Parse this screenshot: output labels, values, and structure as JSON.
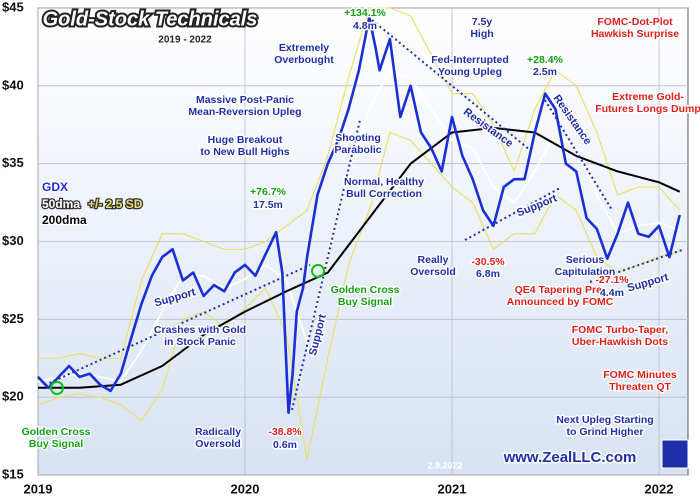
{
  "chart_data": {
    "type": "line",
    "title": "Gold-Stock Technicals",
    "subtitle": "2019 - 2022",
    "date_note": "2.9.2022",
    "website": "www.ZealLLC.com",
    "xlim": [
      2019,
      2022.14
    ],
    "xticks": [
      2019,
      2020,
      2021,
      2022
    ],
    "ylim": [
      15,
      45
    ],
    "yticks": [
      {
        "value": 15,
        "label": "$15"
      },
      {
        "value": 20,
        "label": "$20"
      },
      {
        "value": 25,
        "label": "$25"
      },
      {
        "value": 30,
        "label": "$30"
      },
      {
        "value": 35,
        "label": "$35"
      },
      {
        "value": 40,
        "label": "$40"
      },
      {
        "value": 45,
        "label": "$45"
      }
    ],
    "grid": true,
    "series": [
      {
        "name": "+/- 2.5 SD",
        "color": "#e8e070",
        "x": [
          2019.0,
          2019.1,
          2019.2,
          2019.3,
          2019.4,
          2019.5,
          2019.6,
          2019.7,
          2019.8,
          2019.9,
          2020.0,
          2020.1,
          2020.2,
          2020.3,
          2020.4,
          2020.5,
          2020.6,
          2020.7,
          2020.8,
          2020.9,
          2021.0,
          2021.1,
          2021.2,
          2021.3,
          2021.4,
          2021.5,
          2021.6,
          2021.7,
          2021.8,
          2021.9,
          2022.0,
          2022.1
        ],
        "values": [
          22.5,
          22.5,
          22.8,
          22.5,
          22.5,
          27.5,
          30.5,
          30.5,
          30.0,
          29.5,
          29.5,
          30.0,
          31.0,
          32.0,
          35.5,
          40.5,
          45.0,
          45.0,
          44.5,
          42.0,
          39.5,
          39.5,
          37.5,
          34.5,
          38.5,
          41.0,
          40.0,
          37.0,
          33.0,
          33.5,
          33.5,
          32.0
        ],
        "lower": [
          19.5,
          20.0,
          20.2,
          20.0,
          19.5,
          18.5,
          20.5,
          25.0,
          25.5,
          24.5,
          25.7,
          27.0,
          24.0,
          16.0,
          22.5,
          28.5,
          32.0,
          37.0,
          36.5,
          35.0,
          33.5,
          32.5,
          29.5,
          30.5,
          30.5,
          33.0,
          32.0,
          29.0,
          28.0,
          28.5,
          29.0,
          29.4
        ]
      },
      {
        "name": "50dma",
        "color": "#ffffff",
        "x": [
          2019.0,
          2019.1,
          2019.2,
          2019.3,
          2019.4,
          2019.5,
          2019.6,
          2019.7,
          2019.8,
          2019.9,
          2020.0,
          2020.1,
          2020.2,
          2020.3,
          2020.4,
          2020.5,
          2020.6,
          2020.7,
          2020.8,
          2020.9,
          2021.0,
          2021.1,
          2021.2,
          2021.3,
          2021.4,
          2021.5,
          2021.6,
          2021.7,
          2021.8,
          2021.9,
          2022.0,
          2022.1
        ],
        "values": [
          21.0,
          21.3,
          21.5,
          21.3,
          21.0,
          23.0,
          25.5,
          27.8,
          27.8,
          27.0,
          27.6,
          28.5,
          27.5,
          23.5,
          29.0,
          34.5,
          38.5,
          41.0,
          40.5,
          38.5,
          36.5,
          36.0,
          33.5,
          32.5,
          34.5,
          37.0,
          36.0,
          33.0,
          30.5,
          31.0,
          31.2,
          30.7
        ]
      },
      {
        "name": "200dma",
        "color": "#000000",
        "x": [
          2019.0,
          2019.2,
          2019.4,
          2019.6,
          2019.8,
          2020.0,
          2020.2,
          2020.4,
          2020.6,
          2020.8,
          2021.0,
          2021.2,
          2021.4,
          2021.6,
          2021.8,
          2022.0,
          2022.1
        ],
        "values": [
          20.6,
          20.6,
          20.8,
          22.0,
          24.0,
          25.5,
          26.8,
          28.0,
          31.5,
          35.0,
          37.0,
          37.3,
          37.0,
          35.5,
          34.5,
          33.8,
          33.2
        ]
      },
      {
        "name": "GDX",
        "color": "#1a2fd6",
        "x": [
          2019.0,
          2019.05,
          2019.1,
          2019.15,
          2019.2,
          2019.25,
          2019.3,
          2019.35,
          2019.4,
          2019.45,
          2019.5,
          2019.55,
          2019.6,
          2019.65,
          2019.7,
          2019.75,
          2019.8,
          2019.85,
          2019.9,
          2019.95,
          2020.0,
          2020.05,
          2020.1,
          2020.15,
          2020.18,
          2020.2,
          2020.21,
          2020.23,
          2020.25,
          2020.28,
          2020.3,
          2020.35,
          2020.4,
          2020.45,
          2020.5,
          2020.55,
          2020.6,
          2020.63,
          2020.65,
          2020.7,
          2020.75,
          2020.8,
          2020.85,
          2020.9,
          2020.95,
          2021.0,
          2021.05,
          2021.1,
          2021.15,
          2021.2,
          2021.25,
          2021.3,
          2021.35,
          2021.4,
          2021.45,
          2021.5,
          2021.55,
          2021.6,
          2021.65,
          2021.7,
          2021.75,
          2021.8,
          2021.85,
          2021.9,
          2021.95,
          2022.0,
          2022.05,
          2022.1
        ],
        "values": [
          21.3,
          20.6,
          21.3,
          22.0,
          21.3,
          21.5,
          20.8,
          20.4,
          21.5,
          23.8,
          26.0,
          27.8,
          29.0,
          29.5,
          27.5,
          28.0,
          26.5,
          27.2,
          26.8,
          28.0,
          28.5,
          27.8,
          29.2,
          30.6,
          28.0,
          22.0,
          19.0,
          21.5,
          25.5,
          27.0,
          29.0,
          33.0,
          35.0,
          36.5,
          38.5,
          41.0,
          44.4,
          42.5,
          41.0,
          43.0,
          38.0,
          40.0,
          37.0,
          36.0,
          34.5,
          38.0,
          35.5,
          34.0,
          32.0,
          31.0,
          33.5,
          34.0,
          34.0,
          37.0,
          39.5,
          38.5,
          35.0,
          34.5,
          31.5,
          30.8,
          28.9,
          30.5,
          32.5,
          30.5,
          30.3,
          31.0,
          29.0,
          31.7
        ]
      }
    ],
    "trend_labels": [
      "Support",
      "Support",
      "Support",
      "Support",
      "Resistance",
      "Resistance"
    ],
    "annotations": [
      {
        "text": [
          "Extremely",
          "Overbought"
        ],
        "color": "#1f2fa8"
      },
      {
        "text": [
          "+134.1%"
        ],
        "color": "#12a012"
      },
      {
        "text": [
          "4.8m"
        ],
        "color": "#1f2fa8"
      },
      {
        "text": [
          "7.5y",
          "High"
        ],
        "color": "#1f2fa8"
      },
      {
        "text": [
          "FOMC-Dot-Plot",
          "Hawkish Surprise"
        ],
        "color": "#e0201b"
      },
      {
        "text": [
          "Fed-Interrupted",
          "Young Upleg"
        ],
        "color": "#1f2fa8"
      },
      {
        "text": [
          "+28.4%"
        ],
        "color": "#12a012"
      },
      {
        "text": [
          "2.5m"
        ],
        "color": "#1f2fa8"
      },
      {
        "text": [
          "Massive Post-Panic",
          "Mean-Reversion Upleg"
        ],
        "color": "#1f2fa8"
      },
      {
        "text": [
          "Huge Breakout",
          "to New Bull Highs"
        ],
        "color": "#1f2fa8"
      },
      {
        "text": [
          "Shooting",
          "Parabolic"
        ],
        "color": "#1f2fa8"
      },
      {
        "text": [
          "Extreme Gold-",
          "Futures Longs Dump"
        ],
        "color": "#e0201b"
      },
      {
        "text": [
          "+76.7%"
        ],
        "color": "#12a012"
      },
      {
        "text": [
          "17.5m"
        ],
        "color": "#1f2fa8"
      },
      {
        "text": [
          "Normal, Healthy",
          "Bull Correction"
        ],
        "color": "#1f2fa8"
      },
      {
        "text": [
          "Really",
          "Oversold"
        ],
        "color": "#1f2fa8"
      },
      {
        "text": [
          "-30.5%"
        ],
        "color": "#e0201b"
      },
      {
        "text": [
          "6.8m"
        ],
        "color": "#1f2fa8"
      },
      {
        "text": [
          "Serious",
          "Capitulation"
        ],
        "color": "#1f2fa8"
      },
      {
        "text": [
          "QE4 Tapering Pre-",
          "Announced by FOMC"
        ],
        "color": "#e0201b"
      },
      {
        "text": [
          "-27.1%"
        ],
        "color": "#e0201b"
      },
      {
        "text": [
          "4.4m"
        ],
        "color": "#1f2fa8"
      },
      {
        "text": [
          "Golden Cross",
          "Buy Signal"
        ],
        "color": "#12a012"
      },
      {
        "text": [
          "Crashes with Gold",
          "in Stock Panic"
        ],
        "color": "#1f2fa8"
      },
      {
        "text": [
          "FOMC Turbo-Taper,",
          "Uber-Hawkish Dots"
        ],
        "color": "#e0201b"
      },
      {
        "text": [
          "FOMC Minutes",
          "Threaten QT"
        ],
        "color": "#e0201b"
      },
      {
        "text": [
          "Golden Cross",
          "Buy Signal"
        ],
        "color": "#12a012"
      },
      {
        "text": [
          "Radically",
          "Oversold"
        ],
        "color": "#1f2fa8"
      },
      {
        "text": [
          "-38.8%"
        ],
        "color": "#e0201b"
      },
      {
        "text": [
          "0.6m"
        ],
        "color": "#1f2fa8"
      },
      {
        "text": [
          "Next Upleg Starting",
          "to Grind Higher"
        ],
        "color": "#1f2fa8"
      }
    ]
  }
}
